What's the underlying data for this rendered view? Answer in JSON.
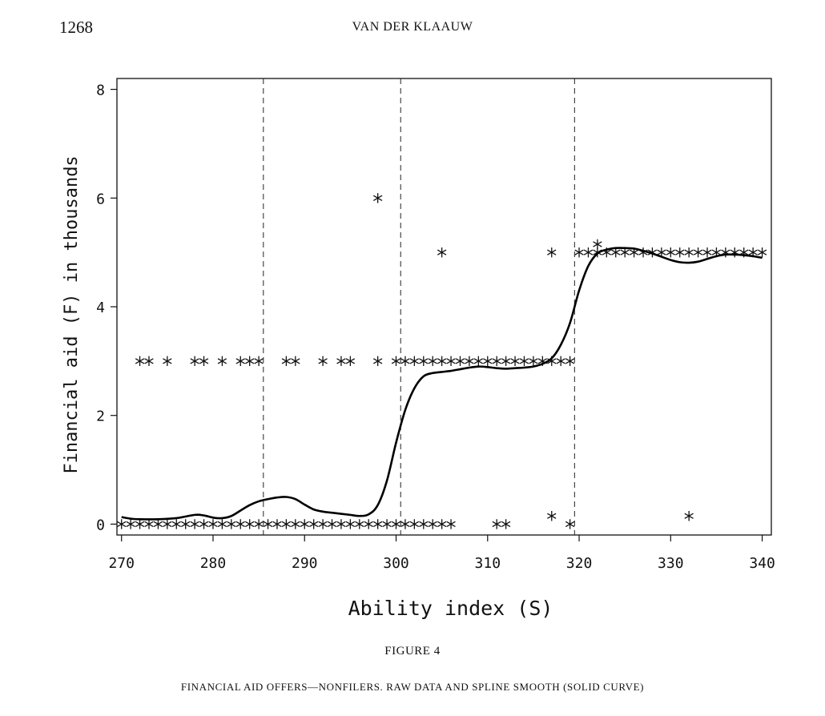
{
  "page": {
    "page_number": "1268",
    "running_head": "VAN DER KLAAUW",
    "figure_label": "FIGURE 4",
    "caption": "FINANCIAL AID OFFERS—NONFILERS. RAW DATA AND SPLINE SMOOTH (SOLID CURVE)"
  },
  "chart_data": {
    "type": "scatter",
    "title": "",
    "xlabel": "Ability index (S)",
    "ylabel": "Financial aid (F) in thousands",
    "xlim": [
      269.5,
      341
    ],
    "ylim": [
      -0.2,
      8.2
    ],
    "xticks": [
      270,
      280,
      290,
      300,
      310,
      320,
      330,
      340
    ],
    "yticks": [
      0,
      2,
      4,
      6,
      8
    ],
    "grid": false,
    "legend": "none",
    "reference_lines_x": [
      285.5,
      300.5,
      319.5
    ],
    "series": [
      {
        "marker": "asterisk",
        "points": [
          [
            270,
            0
          ],
          [
            271,
            0
          ],
          [
            272,
            0
          ],
          [
            273,
            0
          ],
          [
            274,
            0
          ],
          [
            275,
            0
          ],
          [
            276,
            0
          ],
          [
            277,
            0
          ],
          [
            278,
            0
          ],
          [
            279,
            0
          ],
          [
            280,
            0
          ],
          [
            281,
            0
          ],
          [
            282,
            0
          ],
          [
            283,
            0
          ],
          [
            284,
            0
          ],
          [
            285,
            0
          ],
          [
            286,
            0
          ],
          [
            287,
            0
          ],
          [
            288,
            0
          ],
          [
            289,
            0
          ],
          [
            290,
            0
          ],
          [
            291,
            0
          ],
          [
            292,
            0
          ],
          [
            293,
            0
          ],
          [
            294,
            0
          ],
          [
            295,
            0
          ],
          [
            296,
            0
          ],
          [
            297,
            0
          ],
          [
            298,
            0
          ],
          [
            299,
            0
          ],
          [
            300,
            0
          ],
          [
            301,
            0
          ],
          [
            302,
            0
          ],
          [
            303,
            0
          ],
          [
            304,
            0
          ],
          [
            305,
            0
          ],
          [
            306,
            0
          ],
          [
            311,
            0
          ],
          [
            312,
            0
          ],
          [
            319,
            0
          ],
          [
            272,
            3
          ],
          [
            273,
            3
          ],
          [
            275,
            3
          ],
          [
            278,
            3
          ],
          [
            279,
            3
          ],
          [
            281,
            3
          ],
          [
            283,
            3
          ],
          [
            284,
            3
          ],
          [
            285,
            3
          ],
          [
            288,
            3
          ],
          [
            289,
            3
          ],
          [
            292,
            3
          ],
          [
            294,
            3
          ],
          [
            295,
            3
          ],
          [
            298,
            3
          ],
          [
            300,
            3
          ],
          [
            301,
            3
          ],
          [
            302,
            3
          ],
          [
            303,
            3
          ],
          [
            304,
            3
          ],
          [
            305,
            3
          ],
          [
            306,
            3
          ],
          [
            307,
            3
          ],
          [
            308,
            3
          ],
          [
            309,
            3
          ],
          [
            310,
            3
          ],
          [
            311,
            3
          ],
          [
            312,
            3
          ],
          [
            313,
            3
          ],
          [
            314,
            3
          ],
          [
            315,
            3
          ],
          [
            316,
            3
          ],
          [
            317,
            3
          ],
          [
            318,
            3
          ],
          [
            319,
            3
          ],
          [
            298,
            6
          ],
          [
            305,
            5
          ],
          [
            317,
            5
          ],
          [
            317,
            0.15
          ],
          [
            332,
            0.15
          ],
          [
            322,
            5.15
          ],
          [
            320,
            5
          ],
          [
            321,
            5
          ],
          [
            322,
            5
          ],
          [
            323,
            5
          ],
          [
            324,
            5
          ],
          [
            325,
            5
          ],
          [
            326,
            5
          ],
          [
            327,
            5
          ],
          [
            328,
            5
          ],
          [
            329,
            5
          ],
          [
            330,
            5
          ],
          [
            331,
            5
          ],
          [
            332,
            5
          ],
          [
            333,
            5
          ],
          [
            334,
            5
          ],
          [
            335,
            5
          ],
          [
            336,
            5
          ],
          [
            337,
            5
          ],
          [
            338,
            5
          ],
          [
            339,
            5
          ],
          [
            340,
            5
          ]
        ]
      },
      {
        "name": "spline smooth",
        "style": "solid-curve",
        "x": [
          270,
          271,
          272,
          274,
          276,
          278,
          279,
          280,
          281,
          282,
          283,
          284,
          285,
          286,
          287,
          288,
          289,
          290,
          291,
          292,
          293,
          294,
          295,
          296,
          297,
          298,
          299,
          300,
          301,
          302,
          303,
          304,
          305,
          306,
          307,
          308,
          309,
          310,
          311,
          312,
          313,
          314,
          315,
          316,
          317,
          318,
          319,
          320,
          321,
          322,
          323,
          324,
          325,
          326,
          327,
          328,
          329,
          330,
          331,
          332,
          333,
          334,
          335,
          336,
          337,
          338,
          339,
          340
        ],
        "y": [
          0.13,
          0.1,
          0.09,
          0.09,
          0.11,
          0.17,
          0.16,
          0.12,
          0.11,
          0.15,
          0.25,
          0.35,
          0.42,
          0.46,
          0.49,
          0.5,
          0.46,
          0.36,
          0.27,
          0.23,
          0.21,
          0.19,
          0.17,
          0.15,
          0.18,
          0.35,
          0.8,
          1.5,
          2.1,
          2.5,
          2.72,
          2.78,
          2.8,
          2.82,
          2.85,
          2.88,
          2.9,
          2.89,
          2.87,
          2.86,
          2.87,
          2.88,
          2.9,
          2.95,
          3.05,
          3.3,
          3.7,
          4.3,
          4.75,
          4.98,
          5.05,
          5.08,
          5.08,
          5.07,
          5.03,
          4.98,
          4.92,
          4.86,
          4.82,
          4.81,
          4.83,
          4.88,
          4.93,
          4.96,
          4.96,
          4.95,
          4.93,
          4.9
        ]
      }
    ]
  }
}
